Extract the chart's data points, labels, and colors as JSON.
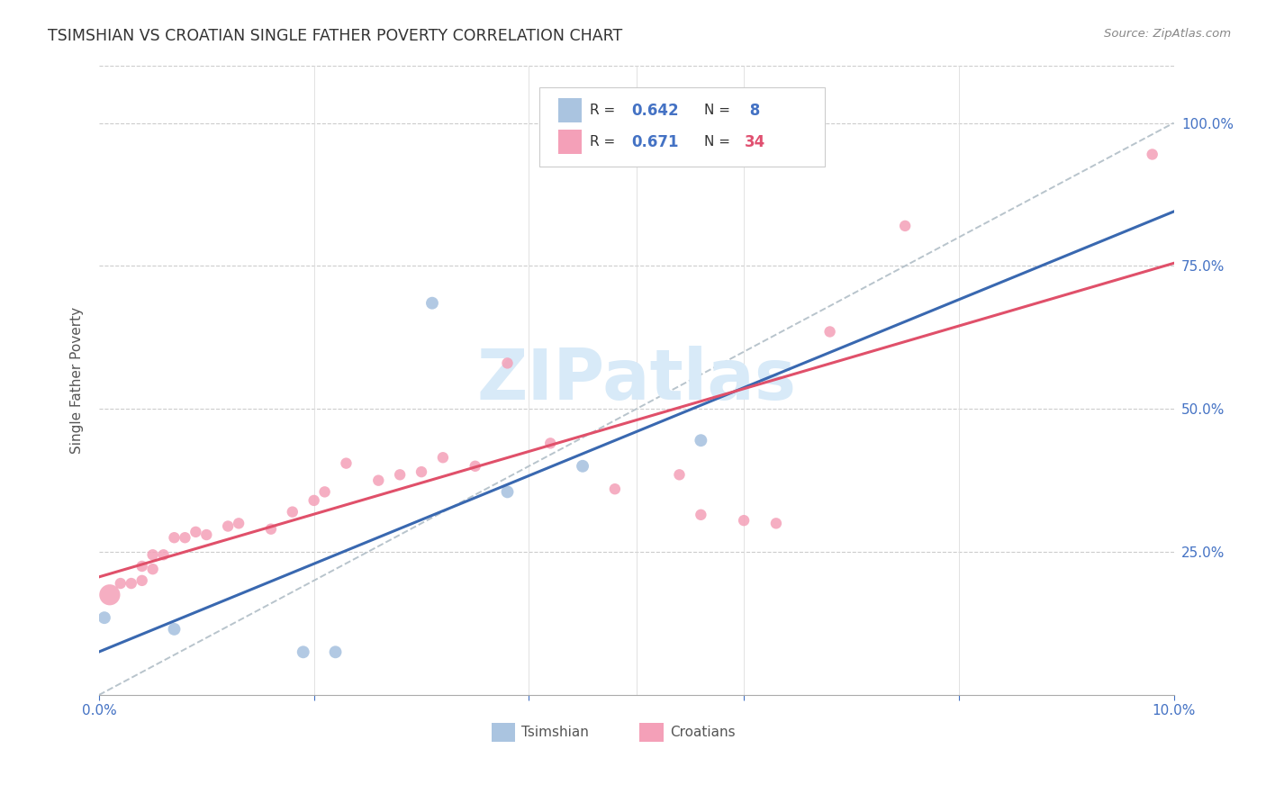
{
  "title": "TSIMSHIAN VS CROATIAN SINGLE FATHER POVERTY CORRELATION CHART",
  "source": "Source: ZipAtlas.com",
  "ylabel": "Single Father Poverty",
  "xlim": [
    0.0,
    0.1
  ],
  "ylim": [
    0.0,
    1.1
  ],
  "x_ticks": [
    0.0,
    0.02,
    0.04,
    0.06,
    0.08,
    0.1
  ],
  "x_tick_labels": [
    "0.0%",
    "",
    "",
    "",
    "",
    "10.0%"
  ],
  "y_ticks_right": [
    0.25,
    0.5,
    0.75,
    1.0
  ],
  "y_tick_labels_right": [
    "25.0%",
    "50.0%",
    "75.0%",
    "100.0%"
  ],
  "tsimshian_color": "#aac4e0",
  "tsimshian_line_color": "#3968b0",
  "croatian_color": "#f4a0b8",
  "croatian_line_color": "#e0506a",
  "diagonal_color": "#b8c4cc",
  "watermark_color": "#d8eaf8",
  "tsimshian_x": [
    0.0005,
    0.007,
    0.019,
    0.022,
    0.031,
    0.038,
    0.045,
    0.056
  ],
  "tsimshian_y": [
    0.135,
    0.115,
    0.075,
    0.075,
    0.685,
    0.355,
    0.4,
    0.445
  ],
  "croatian_x": [
    0.001,
    0.002,
    0.003,
    0.004,
    0.004,
    0.005,
    0.005,
    0.006,
    0.007,
    0.008,
    0.009,
    0.01,
    0.012,
    0.013,
    0.016,
    0.018,
    0.02,
    0.021,
    0.023,
    0.026,
    0.028,
    0.03,
    0.032,
    0.035,
    0.038,
    0.042,
    0.048,
    0.054,
    0.056,
    0.06,
    0.063,
    0.068,
    0.075,
    0.098
  ],
  "croatian_y": [
    0.175,
    0.195,
    0.195,
    0.2,
    0.225,
    0.22,
    0.245,
    0.245,
    0.275,
    0.275,
    0.285,
    0.28,
    0.295,
    0.3,
    0.29,
    0.32,
    0.34,
    0.355,
    0.405,
    0.375,
    0.385,
    0.39,
    0.415,
    0.4,
    0.58,
    0.44,
    0.36,
    0.385,
    0.315,
    0.305,
    0.3,
    0.635,
    0.82,
    0.945
  ],
  "tsimshian_size": 100,
  "croatian_size": 80,
  "large_croatian_idx": [
    0
  ],
  "large_croatian_size": 280
}
